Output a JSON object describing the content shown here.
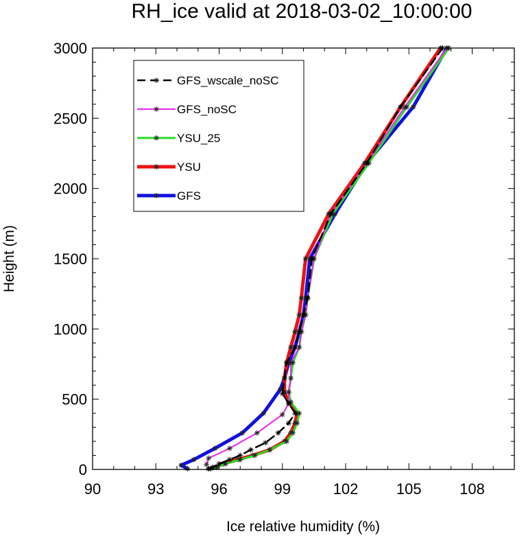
{
  "chart_data": {
    "type": "line",
    "title": "RH_ice valid at 2018-03-02_10:00:00",
    "xlabel": "Ice relative humidity (%)",
    "ylabel": "Height (m)",
    "xlim": [
      90,
      110
    ],
    "ylim": [
      0,
      3000
    ],
    "xticks": [
      90,
      93,
      96,
      99,
      102,
      105,
      108
    ],
    "xtick_labels": [
      "90",
      "93",
      "96",
      "99",
      "102",
      "105",
      "108"
    ],
    "yticks": [
      0,
      500,
      1000,
      1500,
      2000,
      2500,
      3000
    ],
    "ytick_labels": [
      "0",
      "500",
      "1000",
      "1500",
      "2000",
      "2500",
      "3000"
    ],
    "grid": false,
    "legend_position": "top-left",
    "series": [
      {
        "name": "GFS_wscale_noSC",
        "color": "#000000",
        "dashed": true,
        "points": [
          [
            95.5,
            5
          ],
          [
            95.7,
            15
          ],
          [
            96.0,
            40
          ],
          [
            96.5,
            70
          ],
          [
            97.0,
            100
          ],
          [
            97.5,
            140
          ],
          [
            98.2,
            190
          ],
          [
            98.8,
            260
          ],
          [
            99.3,
            330
          ],
          [
            99.6,
            400
          ],
          [
            99.3,
            470
          ],
          [
            99.0,
            540
          ],
          [
            99.1,
            650
          ],
          [
            99.2,
            760
          ],
          [
            99.6,
            870
          ],
          [
            99.8,
            980
          ],
          [
            100.0,
            1100
          ],
          [
            100.2,
            1220
          ],
          [
            100.4,
            1500
          ],
          [
            101.3,
            1820
          ],
          [
            103.0,
            2180
          ],
          [
            104.6,
            2580
          ],
          [
            106.6,
            3000
          ]
        ]
      },
      {
        "name": "GFS_noSC",
        "color": "#ee22ee",
        "dashed": false,
        "points": [
          [
            95.4,
            35
          ],
          [
            95.5,
            80
          ],
          [
            96.5,
            150
          ],
          [
            97.8,
            260
          ],
          [
            99.0,
            390
          ],
          [
            99.3,
            470
          ],
          [
            99.3,
            550
          ],
          [
            99.4,
            650
          ],
          [
            99.4,
            760
          ],
          [
            99.8,
            870
          ],
          [
            99.9,
            980
          ],
          [
            100.1,
            1100
          ],
          [
            100.2,
            1220
          ],
          [
            100.5,
            1500
          ],
          [
            101.3,
            1820
          ],
          [
            103.0,
            2180
          ],
          [
            104.8,
            2580
          ],
          [
            106.8,
            3000
          ]
        ]
      },
      {
        "name": "YSU_25",
        "color": "#22dd22",
        "dashed": false,
        "points": [
          [
            95.6,
            5
          ],
          [
            95.9,
            15
          ],
          [
            96.3,
            40
          ],
          [
            97.0,
            70
          ],
          [
            97.7,
            100
          ],
          [
            98.4,
            140
          ],
          [
            99.2,
            200
          ],
          [
            99.5,
            260
          ],
          [
            99.7,
            330
          ],
          [
            99.8,
            400
          ],
          [
            99.4,
            480
          ],
          [
            99.3,
            550
          ],
          [
            99.4,
            650
          ],
          [
            99.5,
            760
          ],
          [
            99.8,
            870
          ],
          [
            99.9,
            980
          ],
          [
            100.1,
            1100
          ],
          [
            100.2,
            1220
          ],
          [
            100.5,
            1500
          ],
          [
            101.4,
            1820
          ],
          [
            103.1,
            2180
          ],
          [
            104.9,
            2580
          ],
          [
            106.9,
            3000
          ]
        ]
      },
      {
        "name": "YSU",
        "color": "#ee1111",
        "dashed": false,
        "points": [
          [
            95.5,
            5
          ],
          [
            95.8,
            15
          ],
          [
            96.2,
            40
          ],
          [
            96.9,
            70
          ],
          [
            97.6,
            100
          ],
          [
            98.4,
            140
          ],
          [
            99.1,
            200
          ],
          [
            99.4,
            260
          ],
          [
            99.6,
            330
          ],
          [
            99.7,
            400
          ],
          [
            99.3,
            480
          ],
          [
            99.1,
            550
          ],
          [
            99.1,
            650
          ],
          [
            99.2,
            760
          ],
          [
            99.4,
            870
          ],
          [
            99.6,
            980
          ],
          [
            99.8,
            1100
          ],
          [
            99.9,
            1220
          ],
          [
            100.1,
            1500
          ],
          [
            101.2,
            1820
          ],
          [
            102.9,
            2180
          ],
          [
            104.6,
            2580
          ],
          [
            106.5,
            3000
          ]
        ]
      },
      {
        "name": "GFS",
        "color": "#1111dd",
        "dashed": false,
        "points": [
          [
            94.5,
            5
          ],
          [
            94.2,
            30
          ],
          [
            94.8,
            70
          ],
          [
            95.8,
            150
          ],
          [
            97.1,
            260
          ],
          [
            98.1,
            400
          ],
          [
            98.9,
            570
          ],
          [
            99.1,
            650
          ],
          [
            99.3,
            760
          ],
          [
            99.6,
            870
          ],
          [
            99.8,
            980
          ],
          [
            100.0,
            1100
          ],
          [
            100.1,
            1220
          ],
          [
            100.3,
            1500
          ],
          [
            101.5,
            1820
          ],
          [
            103.0,
            2180
          ],
          [
            105.2,
            2580
          ],
          [
            106.8,
            3000
          ]
        ]
      }
    ]
  }
}
